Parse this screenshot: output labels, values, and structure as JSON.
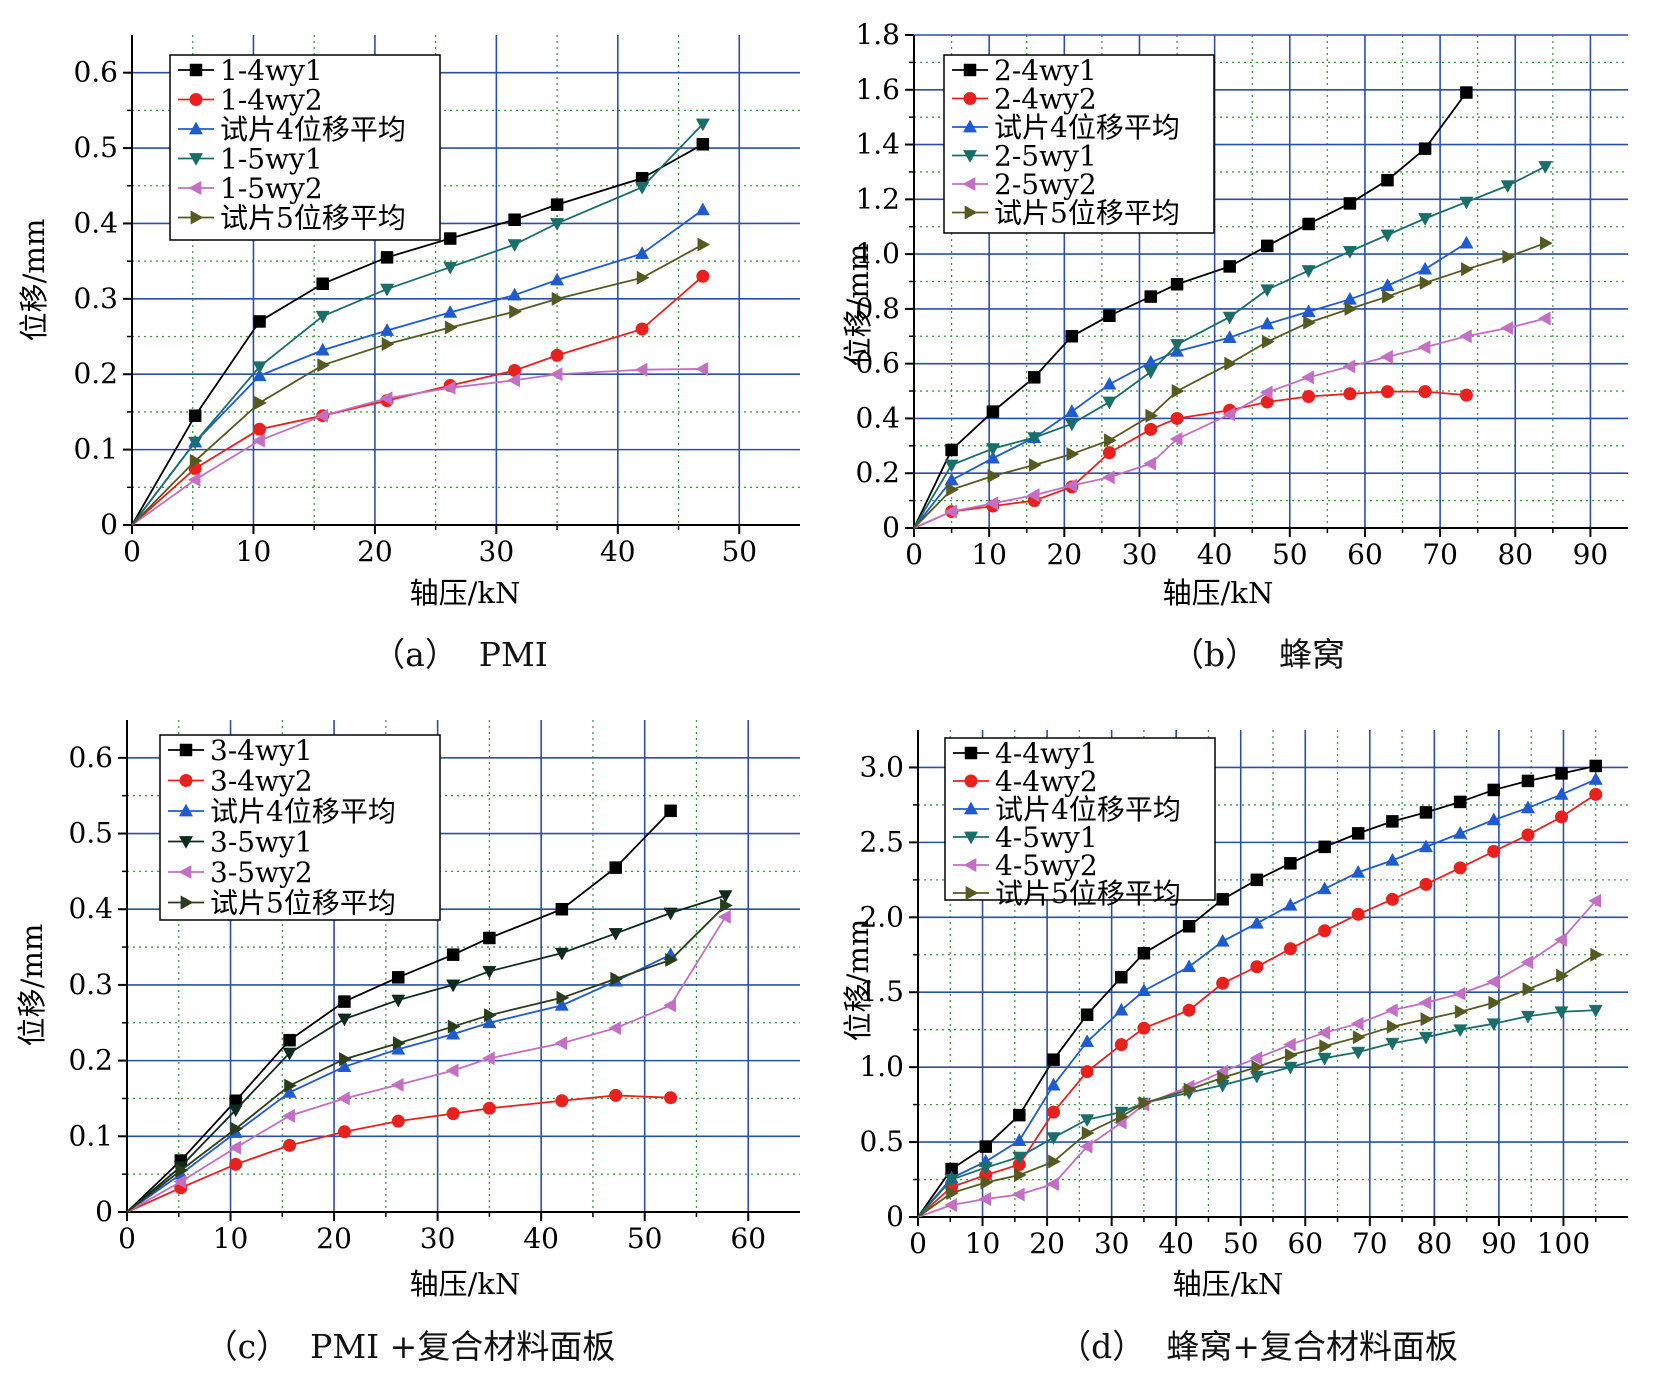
{
  "chart_data": [
    {
      "id": "a",
      "type": "line",
      "title": "",
      "caption": "（a）  PMI",
      "xlabel": "轴压/kN",
      "ylabel": "位移/mm",
      "xlim": [
        0,
        55
      ],
      "ylim": [
        0,
        0.65
      ],
      "xticks": [
        0,
        10,
        20,
        30,
        40,
        50
      ],
      "yticks": [
        0,
        0.1,
        0.2,
        0.3,
        0.4,
        0.5,
        0.6
      ],
      "xtick_labels": [
        "0",
        "10",
        "20",
        "30",
        "40",
        "50"
      ],
      "ytick_labels": [
        "0",
        "0.1",
        "0.2",
        "0.3",
        "0.4",
        "0.5",
        "0.6"
      ],
      "grid": true,
      "legend": "top-left",
      "series": [
        {
          "name": "1-4wy1",
          "marker": "square",
          "color": "#000000",
          "x": [
            0,
            5.2,
            10.5,
            15.7,
            21,
            26.2,
            31.5,
            35,
            42,
            47
          ],
          "y": [
            0,
            0.145,
            0.27,
            0.32,
            0.355,
            0.38,
            0.405,
            0.425,
            0.46,
            0.505
          ]
        },
        {
          "name": "1-4wy2",
          "marker": "circle",
          "color": "#e8211f",
          "x": [
            0,
            5.2,
            10.5,
            15.7,
            21,
            26.2,
            31.5,
            35,
            42,
            47
          ],
          "y": [
            0,
            0.075,
            0.127,
            0.145,
            0.165,
            0.185,
            0.205,
            0.225,
            0.26,
            0.33
          ]
        },
        {
          "name": "试片4位移平均",
          "marker": "triangle-up",
          "color": "#1f5bd0",
          "x": [
            0,
            5.2,
            10.5,
            15.7,
            21,
            26.2,
            31.5,
            35,
            42,
            47
          ],
          "y": [
            0,
            0.11,
            0.198,
            0.232,
            0.258,
            0.282,
            0.305,
            0.325,
            0.36,
            0.418
          ]
        },
        {
          "name": "1-5wy1",
          "marker": "triangle-down",
          "color": "#1a6e6a",
          "x": [
            0,
            5.2,
            10.5,
            15.7,
            21,
            26.2,
            31.5,
            35,
            42,
            47
          ],
          "y": [
            0,
            0.11,
            0.21,
            0.277,
            0.313,
            0.342,
            0.372,
            0.4,
            0.448,
            0.532
          ]
        },
        {
          "name": "1-5wy2",
          "marker": "triangle-left",
          "color": "#c36fc3",
          "x": [
            0,
            5.2,
            10.5,
            15.7,
            21,
            26.2,
            31.5,
            35,
            42,
            47
          ],
          "y": [
            0,
            0.06,
            0.112,
            0.145,
            0.168,
            0.182,
            0.192,
            0.2,
            0.206,
            0.207
          ]
        },
        {
          "name": "试片5位移平均",
          "marker": "triangle-right",
          "color": "#555a22",
          "x": [
            0,
            5.2,
            10.5,
            15.7,
            21,
            26.2,
            31.5,
            35,
            42,
            47
          ],
          "y": [
            0,
            0.085,
            0.162,
            0.212,
            0.24,
            0.262,
            0.283,
            0.3,
            0.328,
            0.372
          ]
        }
      ]
    },
    {
      "id": "b",
      "type": "line",
      "title": "",
      "caption": "（b）  蜂窝",
      "xlabel": "轴压/kN",
      "ylabel": "位移/mm",
      "xlim": [
        0,
        95
      ],
      "ylim": [
        0,
        1.8
      ],
      "xticks": [
        0,
        10,
        20,
        30,
        40,
        50,
        60,
        70,
        80,
        90
      ],
      "yticks": [
        0,
        0.2,
        0.4,
        0.6,
        0.8,
        1.0,
        1.2,
        1.4,
        1.6,
        1.8
      ],
      "xtick_labels": [
        "0",
        "10",
        "20",
        "30",
        "40",
        "50",
        "60",
        "70",
        "80",
        "90"
      ],
      "ytick_labels": [
        "0",
        "0.2",
        "0.4",
        "0.6",
        "0.8",
        "1.0",
        "1.2",
        "1.4",
        "1.6",
        "1.8"
      ],
      "grid": true,
      "legend": "top-left",
      "series": [
        {
          "name": "2-4wy1",
          "marker": "square",
          "color": "#000000",
          "x": [
            0,
            5,
            10.5,
            16,
            21,
            26,
            31.5,
            35,
            42,
            47,
            52.5,
            58,
            63,
            68,
            73.5
          ],
          "y": [
            0,
            0.285,
            0.425,
            0.55,
            0.7,
            0.775,
            0.845,
            0.89,
            0.955,
            1.03,
            1.11,
            1.185,
            1.27,
            1.385,
            1.59
          ]
        },
        {
          "name": "2-4wy2",
          "marker": "circle",
          "color": "#e8211f",
          "x": [
            0,
            5,
            10.5,
            16,
            21,
            26,
            31.5,
            35,
            42,
            47,
            52.5,
            58,
            63,
            68,
            73.5
          ],
          "y": [
            0,
            0.06,
            0.08,
            0.1,
            0.15,
            0.275,
            0.36,
            0.4,
            0.43,
            0.46,
            0.48,
            0.49,
            0.498,
            0.498,
            0.485
          ]
        },
        {
          "name": "试片4位移平均",
          "marker": "triangle-up",
          "color": "#1f5bd0",
          "x": [
            0,
            5,
            10.5,
            16,
            21,
            26,
            31.5,
            35,
            42,
            47,
            52.5,
            58,
            63,
            68,
            73.5
          ],
          "y": [
            0,
            0.175,
            0.255,
            0.33,
            0.425,
            0.525,
            0.605,
            0.645,
            0.695,
            0.745,
            0.79,
            0.835,
            0.885,
            0.945,
            1.04
          ]
        },
        {
          "name": "2-5wy1",
          "marker": "triangle-down",
          "color": "#1a6e6a",
          "x": [
            0,
            5,
            10.5,
            16,
            21,
            26,
            31.5,
            35,
            42,
            47,
            52.5,
            58,
            63,
            68,
            73.5,
            79,
            84
          ],
          "y": [
            0,
            0.23,
            0.29,
            0.33,
            0.38,
            0.46,
            0.57,
            0.67,
            0.77,
            0.87,
            0.94,
            1.01,
            1.07,
            1.13,
            1.19,
            1.25,
            1.32
          ]
        },
        {
          "name": "2-5wy2",
          "marker": "triangle-left",
          "color": "#c36fc3",
          "x": [
            0,
            5,
            10.5,
            16,
            21,
            26,
            31.5,
            35,
            42,
            47,
            52.5,
            58,
            63,
            68,
            73.5,
            79,
            84
          ],
          "y": [
            0,
            0.06,
            0.09,
            0.12,
            0.155,
            0.185,
            0.235,
            0.325,
            0.415,
            0.495,
            0.55,
            0.59,
            0.625,
            0.66,
            0.7,
            0.73,
            0.765
          ]
        },
        {
          "name": "试片5位移平均",
          "marker": "triangle-right",
          "color": "#555a22",
          "x": [
            0,
            5,
            10.5,
            16,
            21,
            26,
            31.5,
            35,
            42,
            47,
            52.5,
            58,
            63,
            68,
            73.5,
            79,
            84
          ],
          "y": [
            0,
            0.14,
            0.19,
            0.23,
            0.27,
            0.32,
            0.41,
            0.5,
            0.6,
            0.68,
            0.75,
            0.8,
            0.845,
            0.895,
            0.945,
            0.99,
            1.04
          ]
        }
      ]
    },
    {
      "id": "c",
      "type": "line",
      "title": "",
      "caption": "（c）  PMI +复合材料面板",
      "xlabel": "轴压/kN",
      "ylabel": "位移/mm",
      "xlim": [
        0,
        65
      ],
      "ylim": [
        0,
        0.65
      ],
      "xticks": [
        0,
        10,
        20,
        30,
        40,
        50,
        60
      ],
      "yticks": [
        0,
        0.1,
        0.2,
        0.3,
        0.4,
        0.5,
        0.6
      ],
      "xtick_labels": [
        "0",
        "10",
        "20",
        "30",
        "40",
        "50",
        "60"
      ],
      "ytick_labels": [
        "0",
        "0.1",
        "0.2",
        "0.3",
        "0.4",
        "0.5",
        "0.6"
      ],
      "grid": true,
      "legend": "top-left",
      "series": [
        {
          "name": "3-4wy1",
          "marker": "square",
          "color": "#000000",
          "x": [
            0,
            5.2,
            10.5,
            15.7,
            21,
            26.2,
            31.5,
            35,
            42,
            47.2,
            52.5
          ],
          "y": [
            0,
            0.068,
            0.147,
            0.227,
            0.278,
            0.31,
            0.34,
            0.362,
            0.4,
            0.455,
            0.53
          ]
        },
        {
          "name": "3-4wy2",
          "marker": "circle",
          "color": "#e8211f",
          "x": [
            0,
            5.2,
            10.5,
            15.7,
            21,
            26.2,
            31.5,
            35,
            42,
            47.2,
            52.5
          ],
          "y": [
            0,
            0.032,
            0.063,
            0.088,
            0.106,
            0.12,
            0.13,
            0.137,
            0.147,
            0.154,
            0.151
          ]
        },
        {
          "name": "试片4位移平均",
          "marker": "triangle-up",
          "color": "#1f5bd0",
          "x": [
            0,
            5.2,
            10.5,
            15.7,
            21,
            26.2,
            31.5,
            35,
            42,
            47.2,
            52.5
          ],
          "y": [
            0,
            0.05,
            0.105,
            0.158,
            0.192,
            0.215,
            0.235,
            0.25,
            0.273,
            0.305,
            0.34
          ]
        },
        {
          "name": "3-5wy1",
          "marker": "triangle-down",
          "color": "#0f2a1e",
          "x": [
            0,
            5.2,
            10.5,
            15.7,
            21,
            26.2,
            31.5,
            35,
            42,
            47.2,
            52.5,
            57.8
          ],
          "y": [
            0,
            0.06,
            0.135,
            0.21,
            0.255,
            0.28,
            0.3,
            0.318,
            0.342,
            0.368,
            0.395,
            0.418
          ]
        },
        {
          "name": "3-5wy2",
          "marker": "triangle-left",
          "color": "#c36fc3",
          "x": [
            0,
            5.2,
            10.5,
            15.7,
            21,
            26.2,
            31.5,
            35,
            42,
            47.2,
            52.5,
            57.8
          ],
          "y": [
            0,
            0.04,
            0.085,
            0.127,
            0.15,
            0.168,
            0.187,
            0.203,
            0.223,
            0.243,
            0.273,
            0.39
          ]
        },
        {
          "name": "试片5位移平均",
          "marker": "triangle-right",
          "color": "#2a3d1a",
          "x": [
            0,
            5.2,
            10.5,
            15.7,
            21,
            26.2,
            31.5,
            35,
            42,
            47.2,
            52.5,
            57.8
          ],
          "y": [
            0,
            0.055,
            0.11,
            0.167,
            0.202,
            0.223,
            0.245,
            0.26,
            0.283,
            0.308,
            0.333,
            0.405
          ]
        }
      ]
    },
    {
      "id": "d",
      "type": "line",
      "title": "",
      "caption": "（d）  蜂窝+复合材料面板",
      "xlabel": "轴压/kN",
      "ylabel": "位移/mm",
      "xlim": [
        0,
        110
      ],
      "ylim": [
        0,
        3.25
      ],
      "xticks": [
        0,
        10,
        20,
        30,
        40,
        50,
        60,
        70,
        80,
        90,
        100
      ],
      "yticks": [
        0,
        0.5,
        1.0,
        1.5,
        2.0,
        2.5,
        3.0
      ],
      "xtick_labels": [
        "0",
        "10",
        "20",
        "30",
        "40",
        "50",
        "60",
        "70",
        "80",
        "90",
        "100"
      ],
      "ytick_labels": [
        "0",
        "0.5",
        "1.0",
        "1.5",
        "2.0",
        "2.5",
        "3.0"
      ],
      "grid": true,
      "legend": "top-left",
      "series": [
        {
          "name": "4-4wy1",
          "marker": "square",
          "color": "#000000",
          "x": [
            0,
            5.2,
            10.5,
            15.7,
            21,
            26.2,
            31.5,
            35,
            42,
            47.2,
            52.5,
            57.7,
            63,
            68.2,
            73.5,
            78.7,
            84,
            89.2,
            94.5,
            99.7,
            105
          ],
          "y": [
            0,
            0.32,
            0.47,
            0.68,
            1.05,
            1.35,
            1.6,
            1.76,
            1.94,
            2.12,
            2.25,
            2.36,
            2.47,
            2.56,
            2.64,
            2.7,
            2.77,
            2.85,
            2.91,
            2.96,
            3.01
          ]
        },
        {
          "name": "4-4wy2",
          "marker": "circle",
          "color": "#e8211f",
          "x": [
            0,
            5.2,
            10.5,
            15.7,
            21,
            26.2,
            31.5,
            35,
            42,
            47.2,
            52.5,
            57.7,
            63,
            68.2,
            73.5,
            78.7,
            84,
            89.2,
            94.5,
            99.7,
            105
          ],
          "y": [
            0,
            0.2,
            0.28,
            0.35,
            0.7,
            0.97,
            1.15,
            1.26,
            1.38,
            1.56,
            1.67,
            1.79,
            1.91,
            2.02,
            2.12,
            2.22,
            2.33,
            2.44,
            2.55,
            2.67,
            2.82
          ]
        },
        {
          "name": "试片4位移平均",
          "marker": "triangle-up",
          "color": "#1f5bd0",
          "x": [
            0,
            5.2,
            10.5,
            15.7,
            21,
            26.2,
            31.5,
            35,
            42,
            47.2,
            52.5,
            57.7,
            63,
            68.2,
            73.5,
            78.7,
            84,
            89.2,
            94.5,
            99.7,
            105
          ],
          "y": [
            0,
            0.26,
            0.37,
            0.51,
            0.88,
            1.17,
            1.38,
            1.51,
            1.67,
            1.84,
            1.96,
            2.08,
            2.19,
            2.3,
            2.38,
            2.47,
            2.56,
            2.65,
            2.73,
            2.82,
            2.92
          ]
        },
        {
          "name": "4-5wy1",
          "marker": "triangle-down",
          "color": "#1a6e6a",
          "x": [
            0,
            5.2,
            10.5,
            15.7,
            21,
            26.2,
            31.5,
            35,
            42,
            47.2,
            52.5,
            57.7,
            63,
            68.2,
            73.5,
            78.7,
            84,
            89.2,
            94.5,
            99.7,
            105
          ],
          "y": [
            0,
            0.25,
            0.33,
            0.4,
            0.53,
            0.65,
            0.7,
            0.76,
            0.83,
            0.88,
            0.94,
            1.0,
            1.06,
            1.1,
            1.16,
            1.2,
            1.25,
            1.29,
            1.34,
            1.37,
            1.38
          ]
        },
        {
          "name": "4-5wy2",
          "marker": "triangle-left",
          "color": "#c36fc3",
          "x": [
            0,
            5.2,
            10.5,
            15.7,
            21,
            26.2,
            31.5,
            35,
            42,
            47.2,
            52.5,
            57.7,
            63,
            68.2,
            73.5,
            78.7,
            84,
            89.2,
            94.5,
            99.7,
            105
          ],
          "y": [
            0,
            0.08,
            0.12,
            0.15,
            0.22,
            0.47,
            0.63,
            0.75,
            0.87,
            0.97,
            1.06,
            1.15,
            1.23,
            1.29,
            1.38,
            1.43,
            1.49,
            1.57,
            1.7,
            1.85,
            2.11
          ]
        },
        {
          "name": "试片5位移平均",
          "marker": "triangle-right",
          "color": "#555a22",
          "x": [
            0,
            5.2,
            10.5,
            15.7,
            21,
            26.2,
            31.5,
            35,
            42,
            47.2,
            52.5,
            57.7,
            63,
            68.2,
            73.5,
            78.7,
            84,
            89.2,
            94.5,
            99.7,
            105
          ],
          "y": [
            0,
            0.16,
            0.23,
            0.28,
            0.37,
            0.56,
            0.67,
            0.76,
            0.85,
            0.93,
            1.0,
            1.08,
            1.14,
            1.2,
            1.27,
            1.32,
            1.37,
            1.43,
            1.52,
            1.61,
            1.75
          ]
        }
      ]
    }
  ]
}
